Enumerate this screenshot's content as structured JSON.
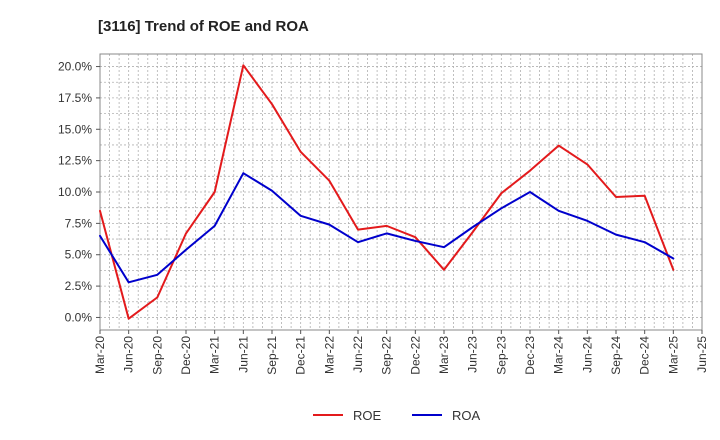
{
  "chart_data": {
    "type": "line",
    "title": "[3116]  Trend of ROE and ROA",
    "xlabel": "",
    "ylabel": "",
    "x": [
      "Mar-20",
      "Jun-20",
      "Sep-20",
      "Dec-20",
      "Mar-21",
      "Jun-21",
      "Sep-21",
      "Dec-21",
      "Mar-22",
      "Jun-22",
      "Sep-22",
      "Dec-22",
      "Mar-23",
      "Jun-23",
      "Sep-23",
      "Dec-23",
      "Mar-24",
      "Jun-24",
      "Sep-24",
      "Dec-24",
      "Mar-25",
      "Jun-25"
    ],
    "yticks": [
      "0.0%",
      "2.5%",
      "5.0%",
      "7.5%",
      "10.0%",
      "12.5%",
      "15.0%",
      "17.5%",
      "20.0%"
    ],
    "ylim": [
      -1.0,
      21.0
    ],
    "grid": true,
    "legend_position": "bottom-center",
    "series": [
      {
        "name": "ROE",
        "color": "#e31a1c",
        "values": [
          8.5,
          -0.1,
          1.6,
          6.7,
          10.0,
          20.1,
          17.0,
          13.2,
          10.9,
          7.0,
          7.3,
          6.4,
          3.8,
          6.8,
          9.9,
          11.7,
          13.7,
          12.2,
          9.6,
          9.7,
          3.8,
          null
        ]
      },
      {
        "name": "ROA",
        "color": "#0000cc",
        "values": [
          6.5,
          2.8,
          3.4,
          5.4,
          7.3,
          11.5,
          10.1,
          8.1,
          7.4,
          6.0,
          6.7,
          6.1,
          5.6,
          7.2,
          8.7,
          10.0,
          8.5,
          7.7,
          6.6,
          6.0,
          4.7,
          null
        ]
      }
    ]
  }
}
